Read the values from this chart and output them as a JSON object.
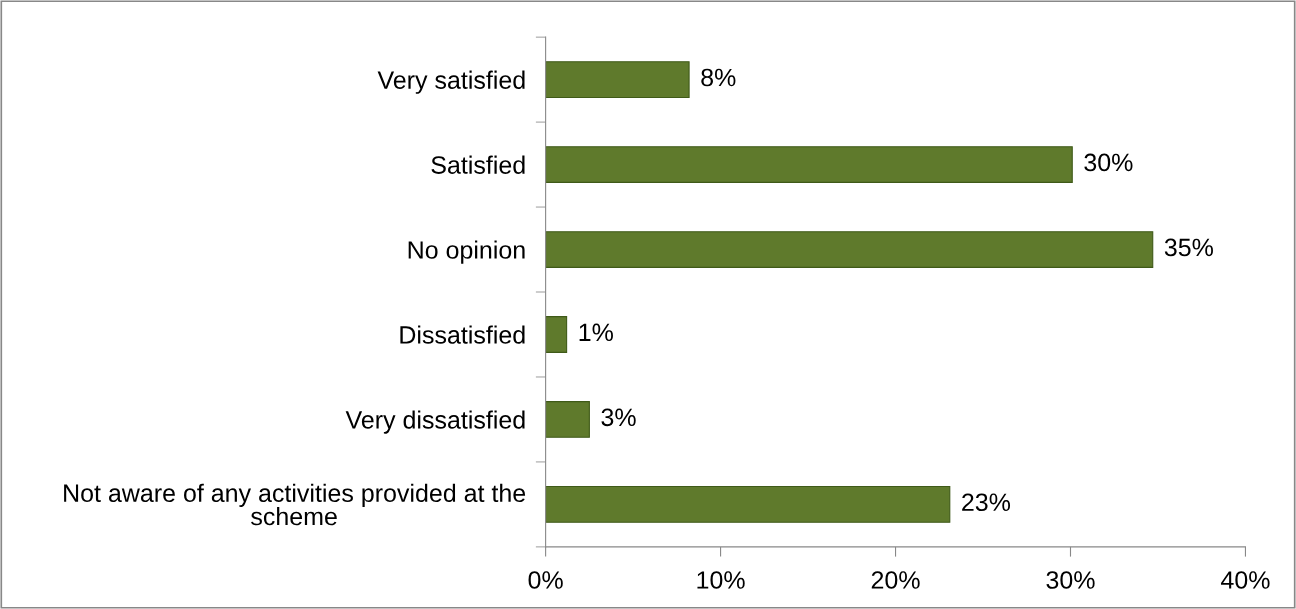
{
  "chart_data": {
    "type": "bar",
    "orientation": "horizontal",
    "categories": [
      "Very satisfied",
      "Satisfied",
      "No opinion",
      "Dissatisfied",
      "Very dissatisfied",
      "Not aware of any activities provided at the scheme"
    ],
    "values": [
      8.2,
      30.1,
      34.7,
      1.2,
      2.5,
      23.1
    ],
    "value_labels": [
      "8%",
      "30%",
      "35%",
      "1%",
      "3%",
      "23%"
    ],
    "color": "#5f7a2c",
    "xlim": [
      0,
      40
    ],
    "xticks": [
      {
        "value": 0,
        "label": "0%"
      },
      {
        "value": 10,
        "label": "10%"
      },
      {
        "value": 20,
        "label": "20%"
      },
      {
        "value": 30,
        "label": "30%"
      },
      {
        "value": 40,
        "label": "40%"
      }
    ],
    "grid": false,
    "legend": false
  }
}
